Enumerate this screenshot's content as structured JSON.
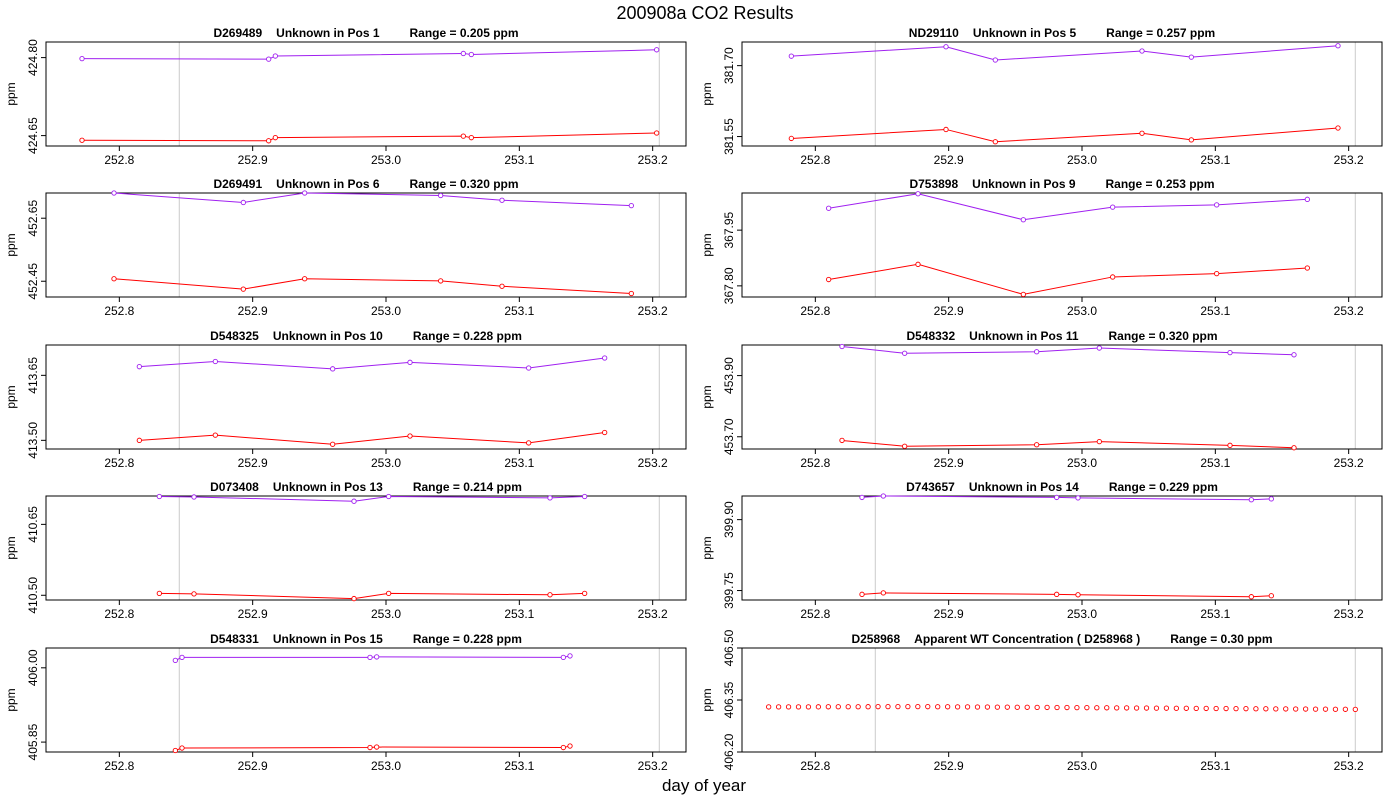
{
  "title": "200908a  CO2 Results",
  "xlabel": "day of year",
  "colors": {
    "series_a": "#a020f0",
    "series_b": "#ff0000",
    "refline": "#d3d3d3",
    "axis": "#000000"
  },
  "chart_data": [
    {
      "type": "line",
      "id": "D269489",
      "label": "Unknown in Pos 1",
      "range_text": "Range =  0.205 ppm",
      "ylabel": "ppm",
      "xlim": [
        252.745,
        253.225
      ],
      "ylim": [
        424.63,
        424.83
      ],
      "yticks": [
        "424.65",
        "424.80"
      ],
      "xticks": [
        "252.8",
        "252.9",
        "253.0",
        "253.1",
        "253.2"
      ],
      "vlines": [
        252.845,
        253.205
      ],
      "x": [
        252.772,
        252.912,
        252.917,
        253.058,
        253.064,
        253.203
      ],
      "series": [
        {
          "name": "upper",
          "values": [
            424.798,
            424.797,
            424.803,
            424.808,
            424.806,
            424.815
          ]
        },
        {
          "name": "lower",
          "values": [
            424.641,
            424.64,
            424.646,
            424.649,
            424.646,
            424.655
          ]
        }
      ]
    },
    {
      "type": "line",
      "id": "ND29110",
      "label": "Unknown in Pos 5",
      "range_text": "Range =  0.257 ppm",
      "ylabel": "ppm",
      "xlim": [
        252.745,
        253.225
      ],
      "ylim": [
        381.53,
        381.75
      ],
      "yticks": [
        "381.55",
        "381.70"
      ],
      "xticks": [
        "252.8",
        "252.9",
        "253.0",
        "253.1",
        "253.2"
      ],
      "vlines": [
        252.845,
        253.205
      ],
      "x": [
        252.782,
        252.898,
        252.935,
        253.045,
        253.082,
        253.192
      ],
      "series": [
        {
          "name": "upper",
          "values": [
            381.72,
            381.74,
            381.712,
            381.731,
            381.718,
            381.742
          ]
        },
        {
          "name": "lower",
          "values": [
            381.546,
            381.565,
            381.539,
            381.557,
            381.543,
            381.568
          ]
        }
      ]
    },
    {
      "type": "line",
      "id": "D269491",
      "label": "Unknown in Pos 6",
      "range_text": "Range =  0.320 ppm",
      "ylabel": "ppm",
      "xlim": [
        252.745,
        253.225
      ],
      "ylim": [
        452.4,
        452.73
      ],
      "yticks": [
        "452.45",
        "452.65"
      ],
      "xticks": [
        "252.8",
        "252.9",
        "253.0",
        "253.1",
        "253.2"
      ],
      "vlines": [
        252.845,
        253.205
      ],
      "x": [
        252.796,
        252.893,
        252.939,
        253.041,
        253.087,
        253.184
      ],
      "series": [
        {
          "name": "upper",
          "values": [
            452.73,
            452.7,
            452.73,
            452.722,
            452.707,
            452.69
          ]
        },
        {
          "name": "lower",
          "values": [
            452.458,
            452.425,
            452.458,
            452.451,
            452.434,
            452.411
          ]
        }
      ]
    },
    {
      "type": "line",
      "id": "D753898",
      "label": "Unknown in Pos 9",
      "range_text": "Range =  0.253 ppm",
      "ylabel": "ppm",
      "xlim": [
        252.745,
        253.225
      ],
      "ylim": [
        367.77,
        368.05
      ],
      "yticks": [
        "367.80",
        "367.95"
      ],
      "xticks": [
        "252.8",
        "252.9",
        "253.0",
        "253.1",
        "253.2"
      ],
      "vlines": [
        252.845,
        253.205
      ],
      "x": [
        252.81,
        252.877,
        252.956,
        253.023,
        253.101,
        253.169
      ],
      "series": [
        {
          "name": "upper",
          "values": [
            368.009,
            368.048,
            367.978,
            368.012,
            368.018,
            368.033
          ]
        },
        {
          "name": "lower",
          "values": [
            367.817,
            367.858,
            367.777,
            367.824,
            367.833,
            367.848
          ]
        }
      ]
    },
    {
      "type": "line",
      "id": "D548325",
      "label": "Unknown in Pos 10",
      "range_text": "Range =  0.228 ppm",
      "ylabel": "ppm",
      "xlim": [
        252.745,
        253.225
      ],
      "ylim": [
        413.48,
        413.72
      ],
      "yticks": [
        "413.50",
        "413.65"
      ],
      "xticks": [
        "252.8",
        "252.9",
        "253.0",
        "253.1",
        "253.2"
      ],
      "vlines": [
        252.845,
        253.205
      ],
      "x": [
        252.815,
        252.872,
        252.96,
        253.018,
        253.107,
        253.164
      ],
      "series": [
        {
          "name": "upper",
          "values": [
            413.67,
            413.682,
            413.665,
            413.68,
            413.667,
            413.69
          ]
        },
        {
          "name": "lower",
          "values": [
            413.5,
            413.512,
            413.491,
            413.51,
            413.494,
            413.518
          ]
        }
      ]
    },
    {
      "type": "line",
      "id": "D548332",
      "label": "Unknown in Pos 11",
      "range_text": "Range =  0.320 ppm",
      "ylabel": "ppm",
      "xlim": [
        252.745,
        253.225
      ],
      "ylim": [
        453.66,
        454.0
      ],
      "yticks": [
        "453.70",
        "453.90"
      ],
      "xticks": [
        "252.8",
        "252.9",
        "253.0",
        "253.1",
        "253.2"
      ],
      "vlines": [
        252.845,
        253.205
      ],
      "x": [
        252.82,
        252.867,
        252.966,
        253.013,
        253.111,
        253.159
      ],
      "series": [
        {
          "name": "upper",
          "values": [
            453.995,
            453.973,
            453.978,
            453.99,
            453.975,
            453.968
          ]
        },
        {
          "name": "lower",
          "values": [
            453.688,
            453.669,
            453.674,
            453.684,
            453.672,
            453.664
          ]
        }
      ]
    },
    {
      "type": "line",
      "id": "D073408",
      "label": "Unknown in Pos 13",
      "range_text": "Range =  0.214 ppm",
      "ylabel": "ppm",
      "xlim": [
        252.745,
        253.225
      ],
      "ylim": [
        410.49,
        410.71
      ],
      "yticks": [
        "410.50",
        "410.65"
      ],
      "xticks": [
        "252.8",
        "252.9",
        "253.0",
        "253.1",
        "253.2"
      ],
      "vlines": [
        252.845,
        253.205
      ],
      "x": [
        252.83,
        252.856,
        252.976,
        253.002,
        253.123,
        253.149
      ],
      "series": [
        {
          "name": "upper",
          "values": [
            410.709,
            410.708,
            410.699,
            410.709,
            410.706,
            410.709
          ]
        },
        {
          "name": "lower",
          "values": [
            410.504,
            410.503,
            410.493,
            410.504,
            410.501,
            410.504
          ]
        }
      ]
    },
    {
      "type": "line",
      "id": "D743657",
      "label": "Unknown in Pos 14",
      "range_text": "Range =  0.229 ppm",
      "ylabel": "ppm",
      "xlim": [
        252.745,
        253.225
      ],
      "ylim": [
        399.73,
        399.95
      ],
      "yticks": [
        "399.75",
        "399.90"
      ],
      "xticks": [
        "252.8",
        "252.9",
        "253.0",
        "253.1",
        "253.2"
      ],
      "vlines": [
        252.845,
        253.205
      ],
      "x": [
        252.835,
        252.851,
        252.981,
        252.997,
        253.127,
        253.142
      ],
      "series": [
        {
          "name": "upper",
          "values": [
            399.947,
            399.95,
            399.947,
            399.946,
            399.942,
            399.944
          ]
        },
        {
          "name": "lower",
          "values": [
            399.742,
            399.745,
            399.742,
            399.741,
            399.737,
            399.739
          ]
        }
      ]
    },
    {
      "type": "line",
      "id": "D548331",
      "label": "Unknown in Pos 15",
      "range_text": "Range =  0.228 ppm",
      "ylabel": "ppm",
      "xlim": [
        252.745,
        253.225
      ],
      "ylim": [
        405.83,
        406.04
      ],
      "yticks": [
        "405.85",
        "406.00"
      ],
      "xticks": [
        "252.8",
        "252.9",
        "253.0",
        "253.1",
        "253.2"
      ],
      "vlines": [
        252.845,
        253.205
      ],
      "x": [
        252.842,
        252.847,
        252.988,
        252.993,
        253.133,
        253.138
      ],
      "series": [
        {
          "name": "upper",
          "values": [
            406.015,
            406.021,
            406.021,
            406.022,
            406.021,
            406.024
          ]
        },
        {
          "name": "lower",
          "values": [
            405.833,
            405.838,
            405.839,
            405.84,
            405.839,
            405.842
          ]
        }
      ]
    },
    {
      "type": "scatter",
      "id": "D258968",
      "label": "Apparent WT Concentration ( D258968 )",
      "range_text": "Range = 0.30 ppm",
      "ylabel": "ppm",
      "xlim": [
        252.745,
        253.225
      ],
      "ylim": [
        406.2,
        406.5
      ],
      "yticks": [
        "406.20",
        "406.35",
        "406.50"
      ],
      "xticks": [
        "252.8",
        "252.9",
        "253.0",
        "253.1",
        "253.2"
      ],
      "vlines": [
        252.845,
        253.205
      ],
      "x_start": 252.765,
      "x_end": 253.205,
      "n_points": 60,
      "y_start": 406.33,
      "y_peak": 406.331,
      "x_peak": 252.873,
      "y_end": 406.323
    }
  ]
}
